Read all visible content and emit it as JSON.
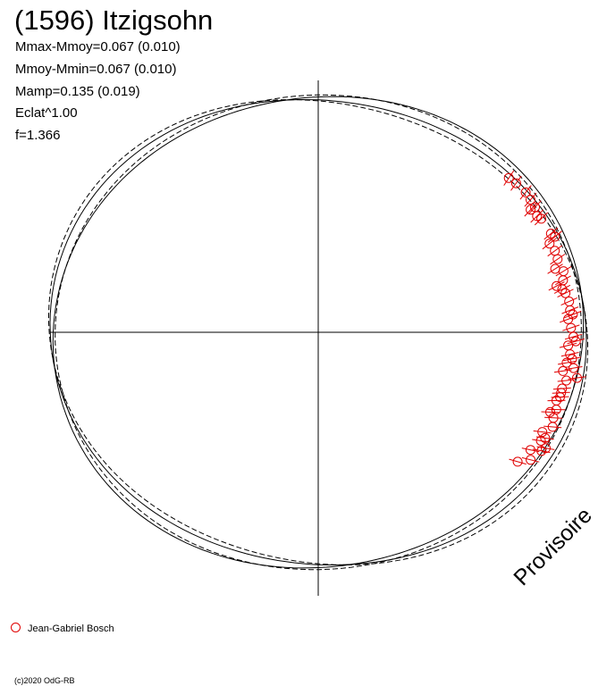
{
  "title": "(1596) Itzigsohn",
  "params": [
    "Mmax-Mmoy=0.067 (0.010)",
    "Mmoy-Mmin=0.067 (0.010)",
    "Mamp=0.135 (0.019)",
    "Eclat^1.00",
    "f=1.366"
  ],
  "stamp": "Provisoire",
  "legend": {
    "label": "Jean-Gabriel Bosch"
  },
  "copyright": "(c)2020 OdG-RB",
  "colors": {
    "observation": "#e00000",
    "curve": "#000000"
  },
  "chart_data": {
    "type": "scatter",
    "title": "(1596) Itzigsohn",
    "polar": true,
    "radial_base": 1.0,
    "model_curves": [
      {
        "style": "solid",
        "amplitude": 0.067,
        "phase_deg": 8
      },
      {
        "style": "solid",
        "amplitude": 0.057,
        "phase_deg": -10
      },
      {
        "style": "dashed",
        "amplitude": 0.077,
        "phase_deg": 14
      },
      {
        "style": "dashed",
        "amplitude": 0.047,
        "phase_deg": -4
      }
    ],
    "series": [
      {
        "name": "Jean-Gabriel Bosch",
        "angle_deg": [
          39,
          37,
          34,
          32,
          30,
          30,
          28,
          27,
          23,
          21,
          19,
          17,
          15,
          14,
          12,
          10,
          9,
          7,
          4,
          3,
          1,
          -1,
          -3,
          -5,
          -7,
          -9,
          -11,
          -13,
          -14,
          -16,
          -18,
          -20,
          -22,
          -24,
          -26,
          -28,
          -29,
          -31,
          -33,
          -10,
          -8,
          -6,
          5,
          -2,
          -15,
          -19,
          -25,
          -27,
          11,
          22
        ],
        "radius": [
          0.98,
          0.99,
          1.0,
          1.0,
          0.98,
          1.0,
          0.99,
          1.0,
          1.01,
          0.99,
          1.0,
          1.0,
          0.98,
          1.01,
          1.0,
          0.99,
          1.0,
          1.01,
          1.02,
          1.0,
          1.01,
          1.02,
          1.0,
          1.01,
          1.0,
          0.99,
          1.01,
          1.0,
          1.0,
          0.99,
          1.0,
          1.0,
          1.01,
          0.98,
          0.99,
          1.01,
          0.97,
          0.99,
          0.95,
          1.05,
          1.03,
          1.02,
          1.01,
          1.03,
          1.0,
          0.98,
          1.0,
          1.02,
          0.97,
          1.02
        ]
      }
    ]
  }
}
